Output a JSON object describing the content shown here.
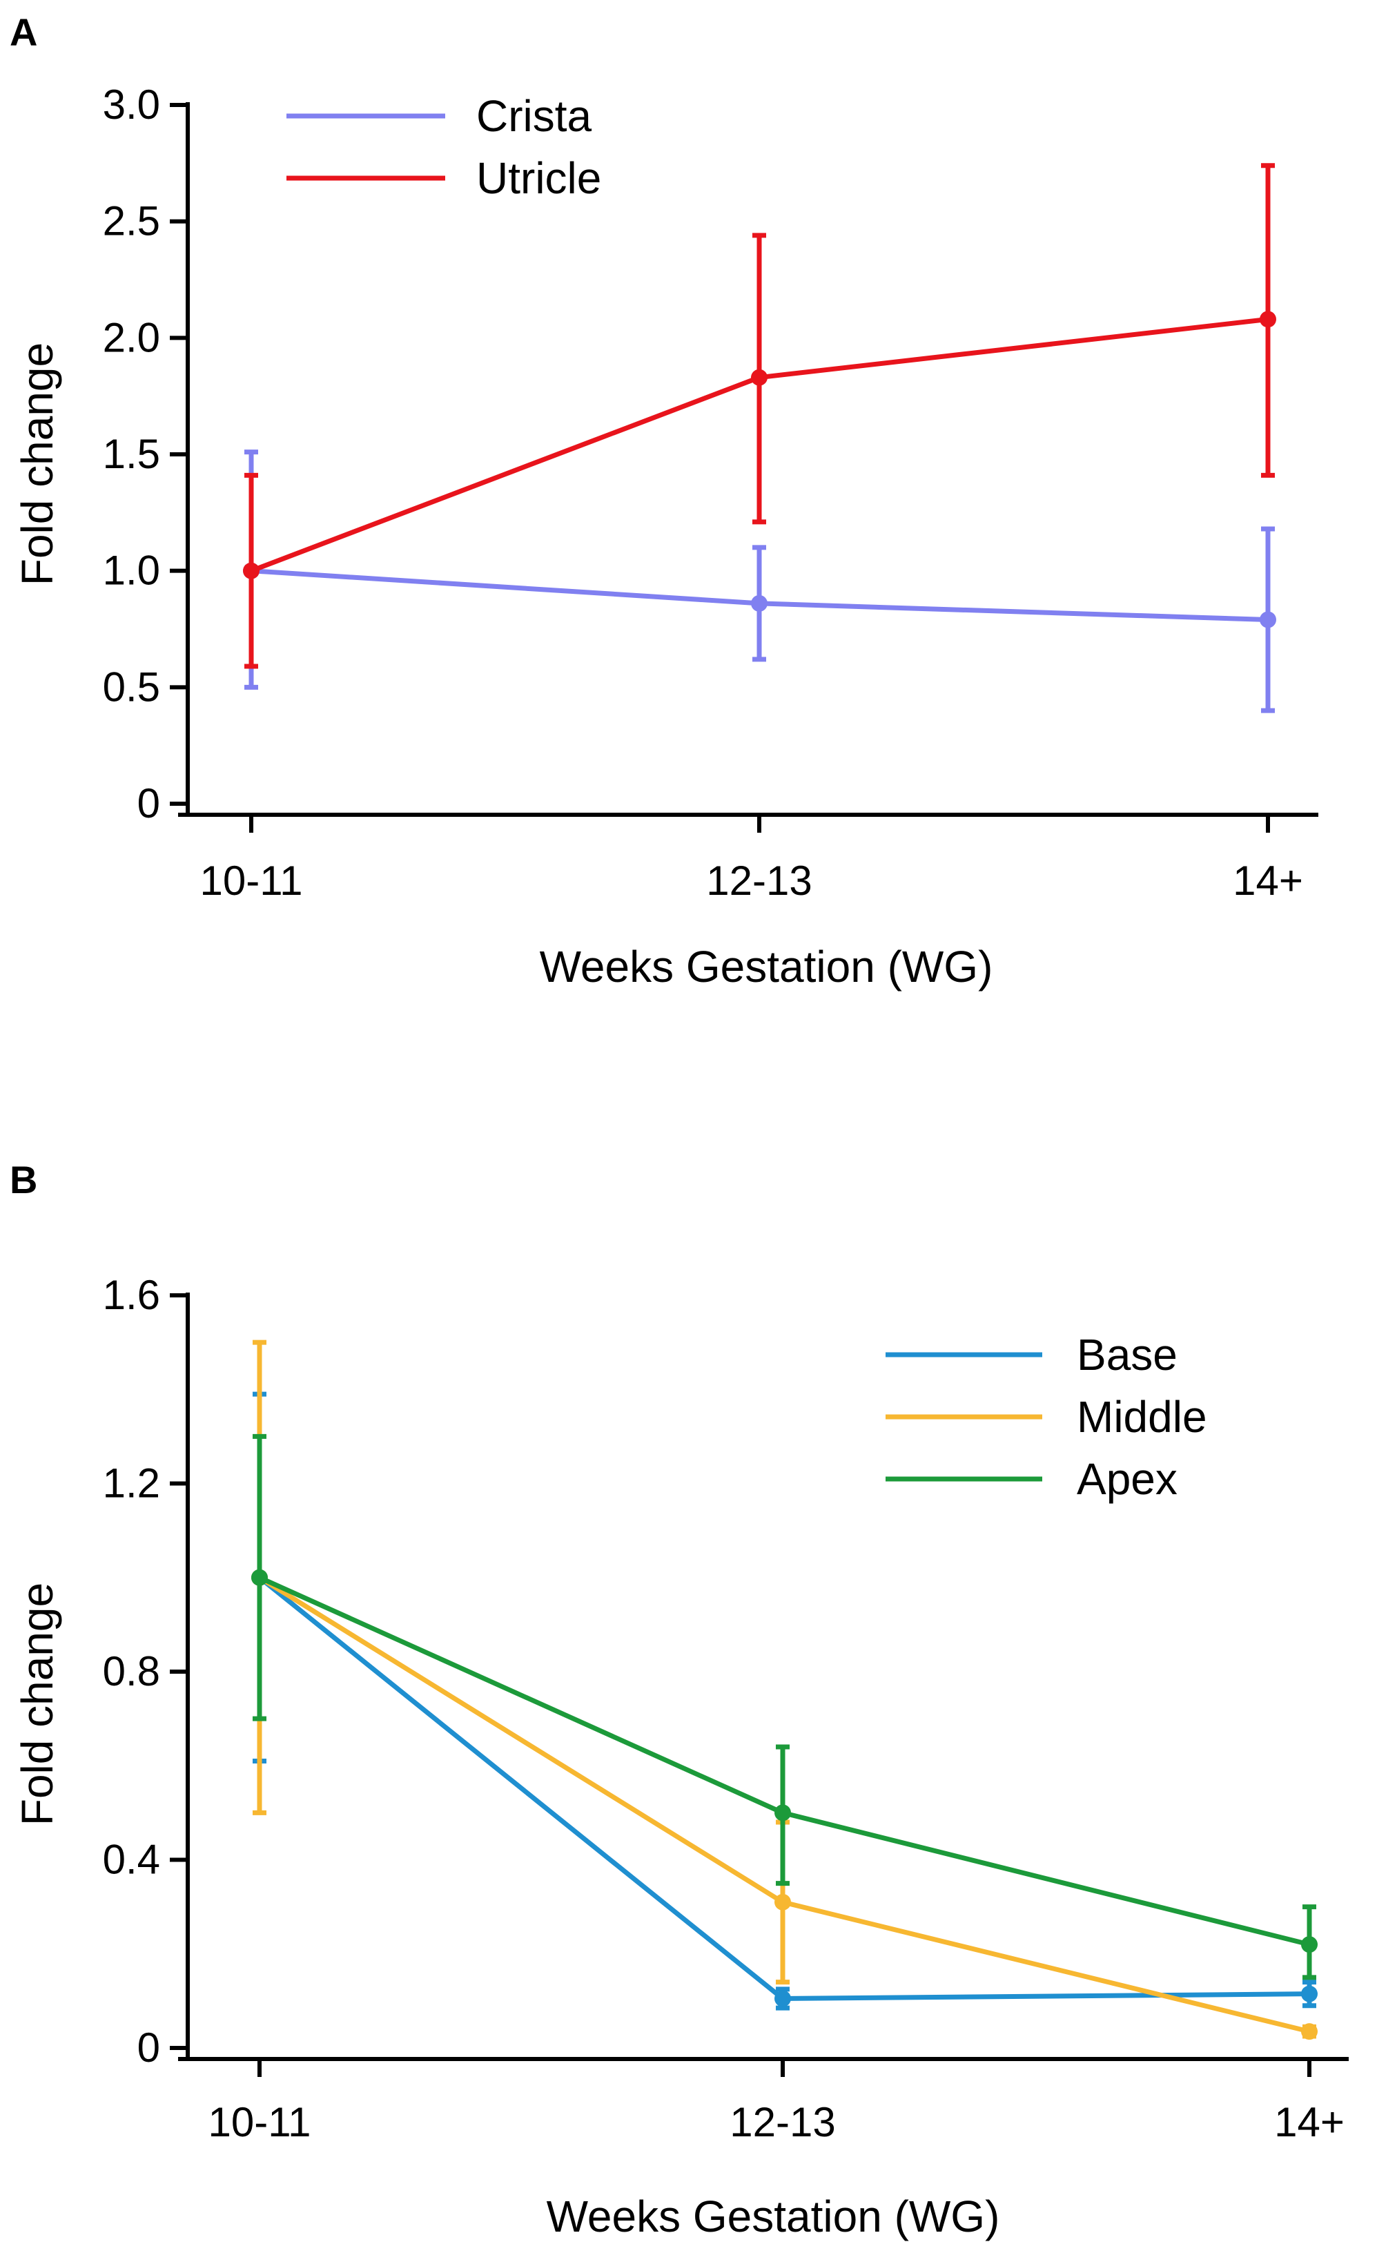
{
  "chart_data": [
    {
      "panel": "A",
      "type": "line",
      "categories": [
        "10-11",
        "12-13",
        "14+"
      ],
      "xlabel": "Weeks Gestation (WG)",
      "ylabel": "Fold change",
      "ylim": [
        0,
        3.0
      ],
      "yticks": [
        0,
        0.5,
        1.0,
        1.5,
        2.0,
        2.5,
        3.0
      ],
      "ytick_labels": [
        "0",
        "0.5",
        "1.0",
        "1.5",
        "2.0",
        "2.5",
        "3.0"
      ],
      "legend_position": "top-left",
      "series": [
        {
          "name": "Crista",
          "color": "#8080f0",
          "values": [
            1.0,
            0.86,
            0.79
          ],
          "err_low": [
            0.5,
            0.62,
            0.4
          ],
          "err_high": [
            1.51,
            1.1,
            1.18
          ]
        },
        {
          "name": "Utricle",
          "color": "#e8141c",
          "values": [
            1.0,
            1.83,
            2.08
          ],
          "err_low": [
            0.59,
            1.21,
            1.41
          ],
          "err_high": [
            1.41,
            2.44,
            2.74
          ]
        }
      ]
    },
    {
      "panel": "B",
      "type": "line",
      "categories": [
        "10-11",
        "12-13",
        "14+"
      ],
      "xlabel": "Weeks Gestation (WG)",
      "ylabel": "Fold change",
      "ylim": [
        0,
        1.6
      ],
      "yticks": [
        0,
        0.4,
        0.8,
        1.2,
        1.6
      ],
      "ytick_labels": [
        "0",
        "0.4",
        "0.8",
        "1.2",
        "1.6"
      ],
      "legend_position": "top-right",
      "series": [
        {
          "name": "Base",
          "color": "#1f8fd0",
          "values": [
            1.0,
            0.105,
            0.115
          ],
          "err_low": [
            0.61,
            0.085,
            0.09
          ],
          "err_high": [
            1.39,
            0.125,
            0.14
          ]
        },
        {
          "name": "Middle",
          "color": "#f7b731",
          "values": [
            1.0,
            0.31,
            0.035
          ],
          "err_low": [
            0.5,
            0.14,
            0.025
          ],
          "err_high": [
            1.5,
            0.48,
            0.045
          ]
        },
        {
          "name": "Apex",
          "color": "#1c9a3a",
          "values": [
            1.0,
            0.5,
            0.22
          ],
          "err_low": [
            0.7,
            0.35,
            0.15
          ],
          "err_high": [
            1.3,
            0.64,
            0.3
          ]
        }
      ]
    }
  ]
}
